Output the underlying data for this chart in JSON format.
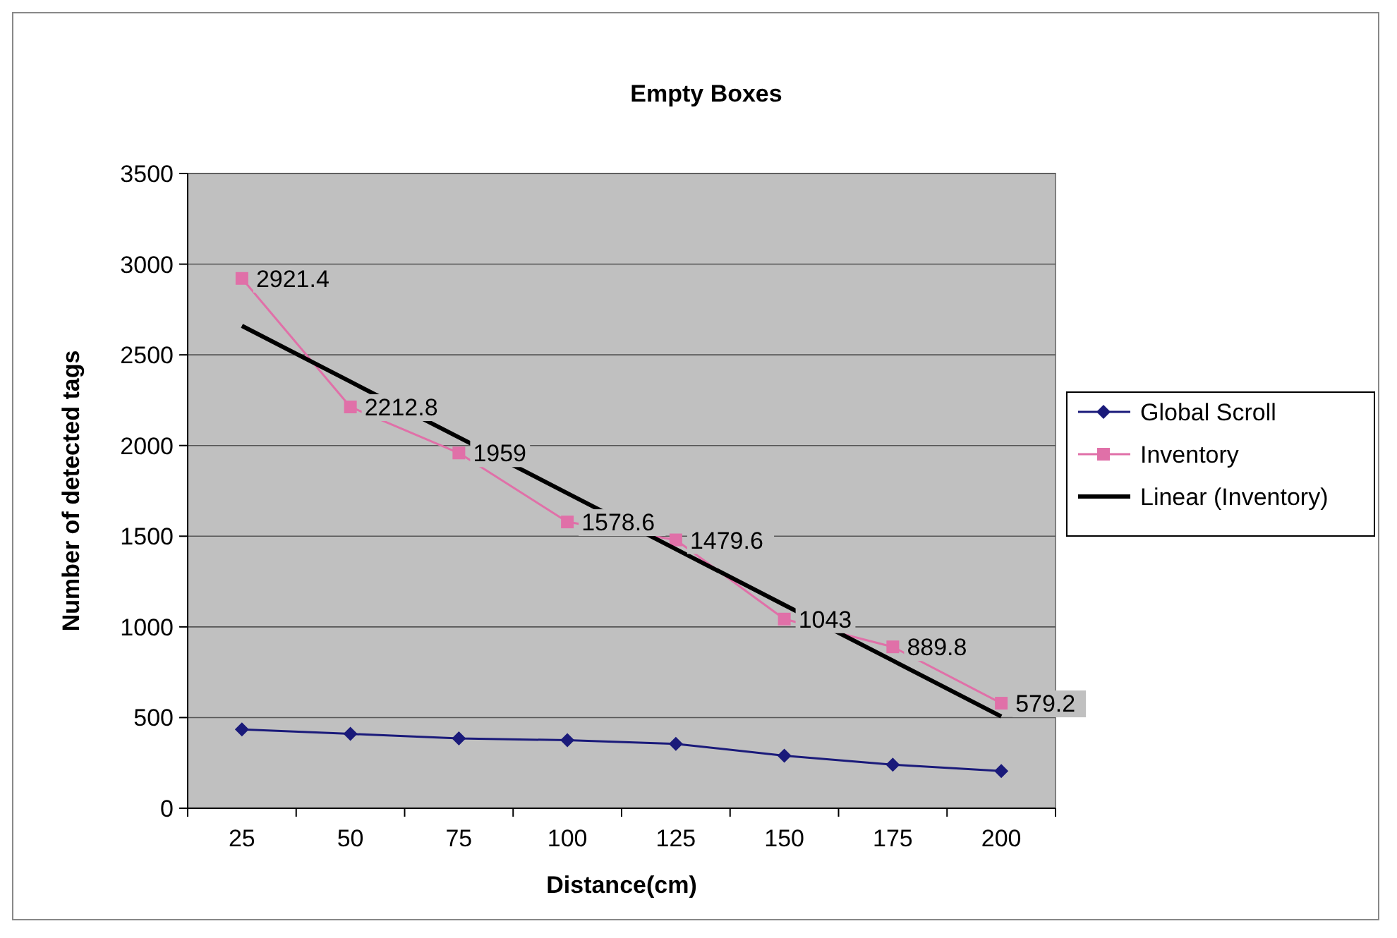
{
  "chart_data": {
    "type": "line",
    "title": "Empty Boxes",
    "xlabel": "Distance(cm)",
    "ylabel": "Number of detected tags",
    "categories": [
      "25",
      "50",
      "75",
      "100",
      "125",
      "150",
      "175",
      "200"
    ],
    "series": [
      {
        "name": "Global Scroll",
        "color": "#1a1a7a",
        "marker": "diamond",
        "values": [
          435,
          410,
          385,
          375,
          355,
          290,
          240,
          205
        ]
      },
      {
        "name": "Inventory",
        "color": "#e070a8",
        "marker": "square",
        "values": [
          2921.4,
          2212.8,
          1959,
          1578.6,
          1479.6,
          1043,
          889.8,
          579.2
        ],
        "value_labels": [
          "2921.4",
          "2212.8",
          "1959",
          "1578.6",
          "1479.6",
          "1043",
          "889.8",
          "579.2"
        ]
      },
      {
        "name": "Linear (Inventory)",
        "type": "line",
        "color": "#000000",
        "marker": "none",
        "values": [
          2660,
          2352,
          2045,
          1737,
          1429,
          1121,
          814,
          506
        ]
      }
    ],
    "ylim": [
      0,
      3500
    ],
    "yticks": [
      0,
      500,
      1000,
      1500,
      2000,
      2500,
      3000,
      3500
    ],
    "grid": "y",
    "legend": "right"
  }
}
